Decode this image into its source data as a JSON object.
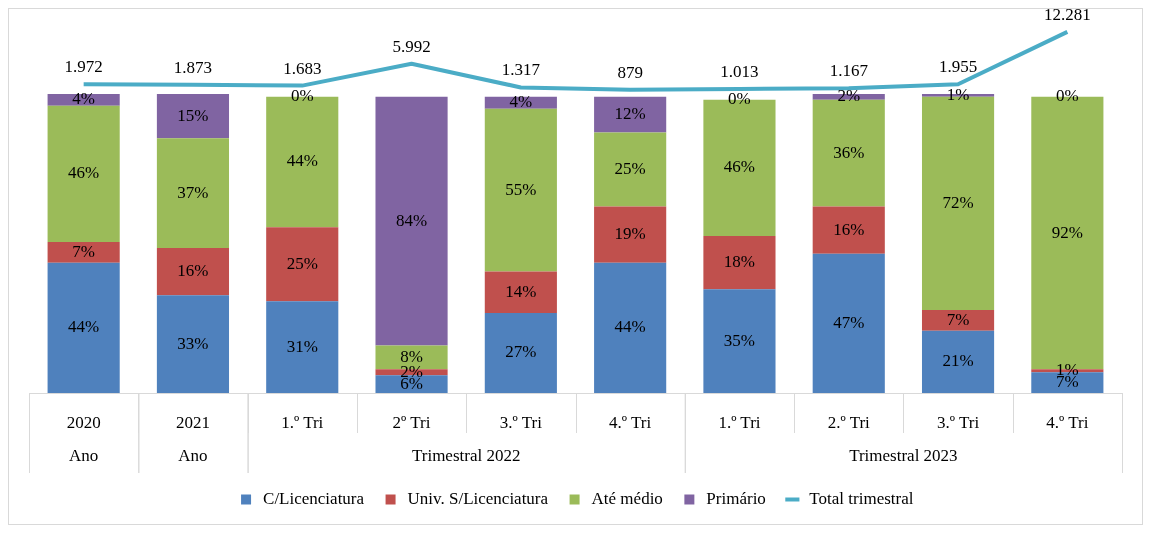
{
  "chart_data": {
    "type": "bar",
    "stacked": true,
    "legend": "bottom",
    "tick_labels": "x",
    "categories": [
      "2020",
      "2021",
      "1.º Tri",
      "2º Tri",
      "3.º Tri",
      "4.º Tri",
      "1.º Tri",
      "2.º Tri",
      "3.º Tri",
      "4.º Tri"
    ],
    "annotations": [
      "Ano",
      "Ano",
      "Trimestral 2022",
      "Trimestral 2023"
    ],
    "ylim": [
      0,
      130
    ],
    "y2lim": [
      -59000,
      17000
    ],
    "marker": "none",
    "series": [
      {
        "name": "C/Licenciatura",
        "color": "#4f81bd",
        "values": [
          44,
          33,
          31,
          6,
          27,
          44,
          35,
          47,
          21,
          7
        ],
        "value_labels": [
          "44%",
          "33%",
          "31%",
          "6%",
          "27%",
          "44%",
          "35%",
          "47%",
          "21%",
          "7%"
        ]
      },
      {
        "name": "Univ. S/Licenciatura",
        "color": "#c0504d",
        "values": [
          7,
          16,
          25,
          2,
          14,
          19,
          18,
          16,
          7,
          1
        ],
        "value_labels": [
          "7%",
          "16%",
          "25%",
          "2%",
          "14%",
          "19%",
          "18%",
          "16%",
          "7%",
          "1%"
        ]
      },
      {
        "name": "Até médio",
        "color": "#9bbb59",
        "values": [
          46,
          37,
          44,
          8,
          55,
          25,
          46,
          36,
          72,
          92
        ],
        "value_labels": [
          "46%",
          "37%",
          "44%",
          "8%",
          "55%",
          "25%",
          "46%",
          "36%",
          "72%",
          "92%"
        ]
      },
      {
        "name": "Primário",
        "color": "#8064a2",
        "values": [
          4,
          15,
          0,
          84,
          4,
          12,
          0,
          2,
          1,
          0
        ],
        "value_labels": [
          "4%",
          "15%",
          "0%",
          "84%",
          "4%",
          "12%",
          "0%",
          "2%",
          "1%",
          "0%"
        ]
      },
      {
        "name": "Total trimestral",
        "type": "line",
        "axis": "y2",
        "color": "#4bacc6",
        "values": [
          1972,
          1873,
          1683,
          5992,
          1317,
          879,
          1013,
          1167,
          1955,
          12281
        ],
        "value_labels": [
          "1.972",
          "1.873",
          "1.683",
          "5.992",
          "1.317",
          "879",
          "1.013",
          "1.167",
          "1.955",
          "12.281"
        ]
      }
    ]
  }
}
